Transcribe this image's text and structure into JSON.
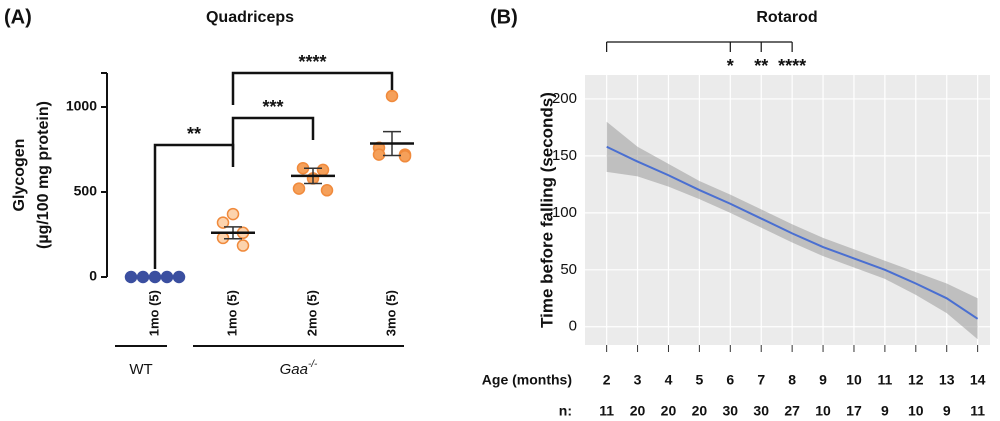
{
  "chart_data": [
    {
      "type": "dot",
      "panel_label": "(A)",
      "title": "Quadriceps",
      "ylabel": [
        "Glycogen",
        "(µg/100 mg protein)"
      ],
      "categories": [
        "1mo (5)",
        "1mo (5)",
        "2mo (5)",
        "3mo (5)"
      ],
      "values": [
        [
          0,
          0,
          0,
          0,
          0
        ],
        [
          370,
          320,
          260,
          230,
          185
        ],
        [
          640,
          630,
          580,
          520,
          510
        ],
        [
          1065,
          760,
          720,
          720,
          710
        ]
      ],
      "means": [
        0,
        260,
        595,
        785
      ],
      "sem": [
        0,
        35,
        45,
        70
      ],
      "colors": [
        "#3b4fa0",
        "#fcd3ad",
        "#f5a05a",
        "#f5a05a"
      ],
      "edge_colors": [
        "#3b4fa0",
        "#f08a3c",
        "#f08a3c",
        "#f08a3c"
      ],
      "groups": [
        {
          "label": "WT",
          "categories": [
            0
          ]
        },
        {
          "label": "Gaa",
          "superscript": "-/-",
          "categories": [
            1,
            2,
            3
          ]
        }
      ],
      "annotations": [
        {
          "text": "**",
          "from": 0,
          "to": 1
        },
        {
          "text": "***",
          "from": 1,
          "to": 2
        },
        {
          "text": "****",
          "from": 1,
          "to": 3
        }
      ],
      "ylim": [
        0,
        1200
      ],
      "yticks": [
        0,
        500,
        1000
      ]
    },
    {
      "type": "line",
      "panel_label": "(B)",
      "title": "Rotarod",
      "ylabel": "Time before falling (seconds)",
      "xlabel": "Age (months)",
      "x": [
        2,
        3,
        4,
        5,
        6,
        7,
        8,
        9,
        10,
        11,
        12,
        13,
        14
      ],
      "series": [
        {
          "color": "#4a6fd1",
          "values": [
            158,
            145,
            133,
            120,
            108,
            95,
            82,
            70,
            60,
            50,
            38,
            25,
            7
          ]
        }
      ],
      "band_upper": [
        180,
        158,
        143,
        128,
        116,
        103,
        90,
        78,
        68,
        58,
        48,
        38,
        25
      ],
      "band_lower": [
        136,
        132,
        123,
        112,
        100,
        87,
        74,
        62,
        52,
        42,
        28,
        12,
        -11
      ],
      "band_color": "#9a9a9a",
      "n_label": "n:",
      "n": [
        11,
        20,
        20,
        20,
        30,
        30,
        27,
        10,
        17,
        9,
        10,
        9,
        11
      ],
      "significance": {
        "from": 2,
        "marks": [
          {
            "at": 6,
            "text": "*"
          },
          {
            "at": 7,
            "text": "**"
          },
          {
            "at": 8,
            "text": "****"
          }
        ]
      },
      "xlim": [
        1.3,
        14.4
      ],
      "ylim": [
        -16,
        221
      ],
      "xticks": [
        2,
        3,
        4,
        5,
        6,
        7,
        8,
        9,
        10,
        11,
        12,
        13,
        14
      ],
      "yticks": [
        0,
        50,
        100,
        150,
        200
      ],
      "grid": true,
      "background": "#ebebeb"
    }
  ]
}
